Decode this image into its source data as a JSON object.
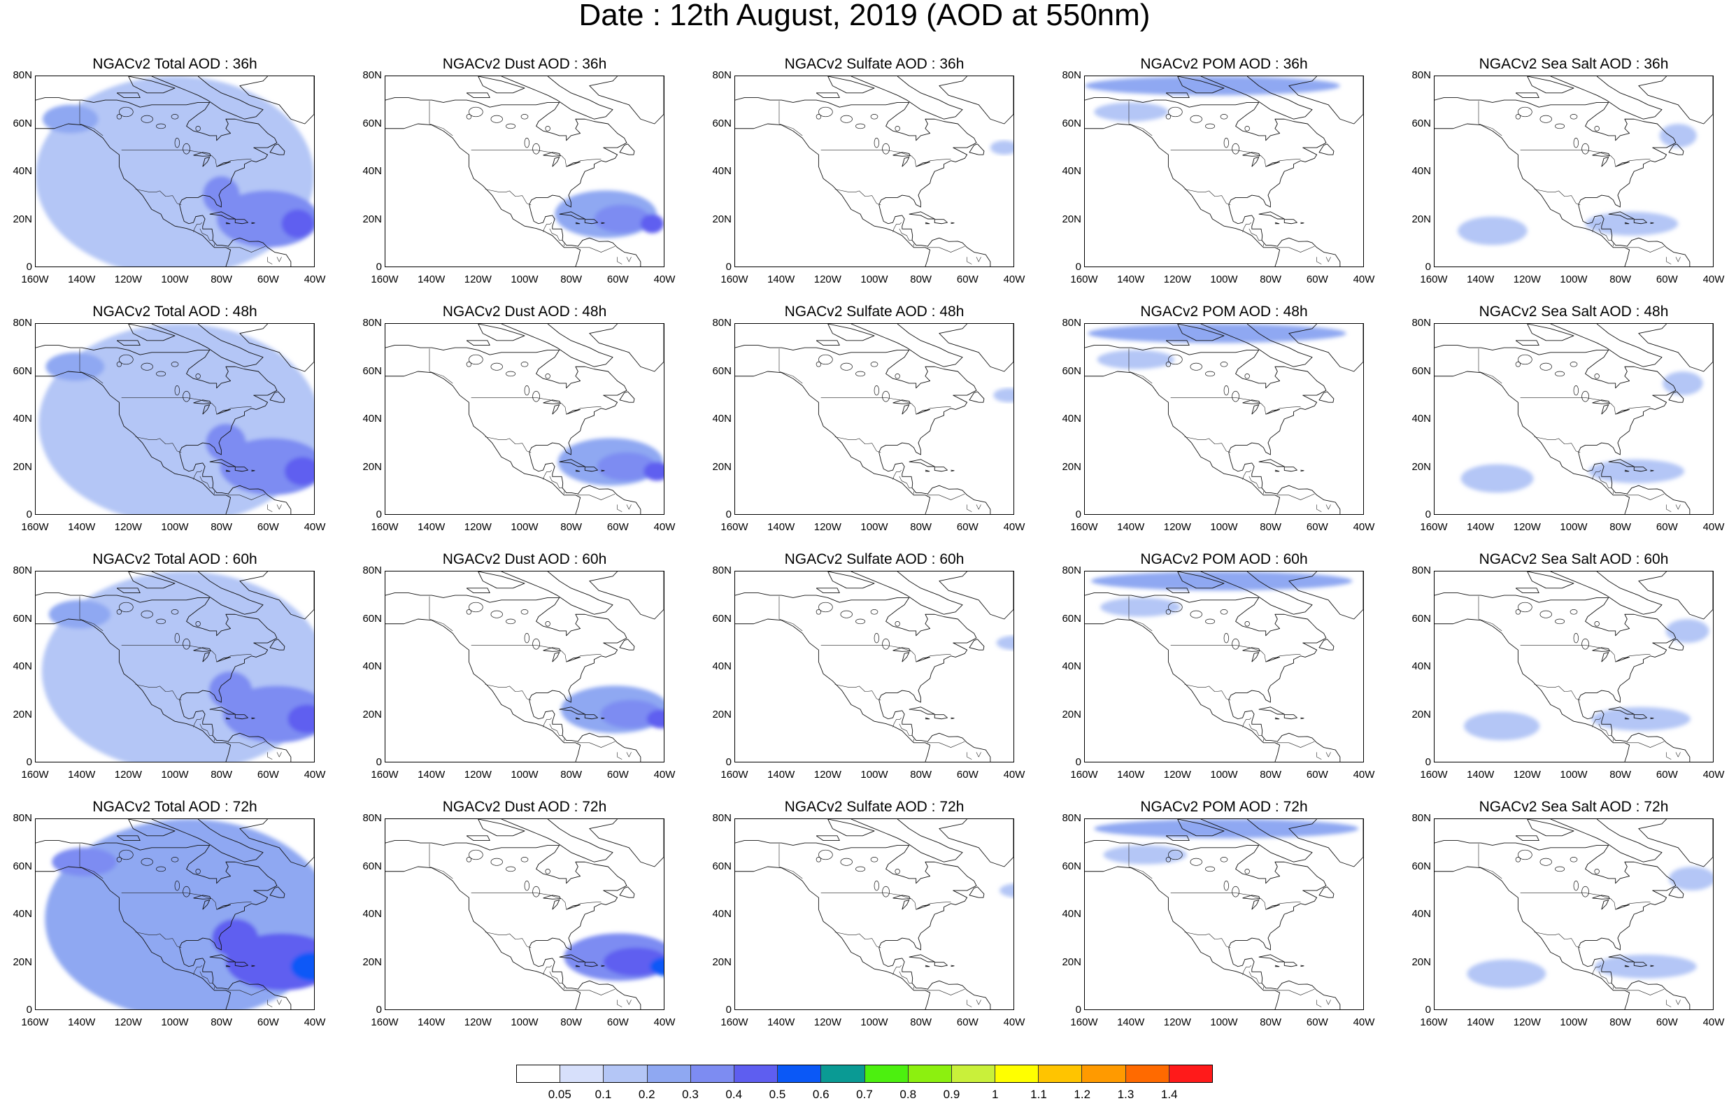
{
  "title": "Date : 12th August, 2019 (AOD at 550nm)",
  "y_ticks": [
    "80N",
    "60N",
    "40N",
    "20N",
    "0"
  ],
  "x_ticks": [
    "160W",
    "140W",
    "120W",
    "100W",
    "80W",
    "60W",
    "40W"
  ],
  "panels": [
    {
      "title": "NGACv2 Total AOD : 36h",
      "species": "total",
      "lead": "36h"
    },
    {
      "title": "NGACv2 Dust AOD : 36h",
      "species": "dust",
      "lead": "36h"
    },
    {
      "title": "NGACv2 Sulfate AOD : 36h",
      "species": "sulfate",
      "lead": "36h"
    },
    {
      "title": "NGACv2 POM AOD : 36h",
      "species": "pom",
      "lead": "36h"
    },
    {
      "title": "NGACv2 Sea Salt AOD : 36h",
      "species": "seasalt",
      "lead": "36h"
    },
    {
      "title": "NGACv2 Total AOD : 48h",
      "species": "total",
      "lead": "48h"
    },
    {
      "title": "NGACv2 Dust AOD : 48h",
      "species": "dust",
      "lead": "48h"
    },
    {
      "title": "NGACv2 Sulfate AOD : 48h",
      "species": "sulfate",
      "lead": "48h"
    },
    {
      "title": "NGACv2 POM AOD : 48h",
      "species": "pom",
      "lead": "48h"
    },
    {
      "title": "NGACv2 Sea Salt AOD : 48h",
      "species": "seasalt",
      "lead": "48h"
    },
    {
      "title": "NGACv2 Total AOD : 60h",
      "species": "total",
      "lead": "60h"
    },
    {
      "title": "NGACv2 Dust AOD : 60h",
      "species": "dust",
      "lead": "60h"
    },
    {
      "title": "NGACv2 Sulfate AOD : 60h",
      "species": "sulfate",
      "lead": "60h"
    },
    {
      "title": "NGACv2 POM AOD : 60h",
      "species": "pom",
      "lead": "60h"
    },
    {
      "title": "NGACv2 Sea Salt AOD : 60h",
      "species": "seasalt",
      "lead": "60h"
    },
    {
      "title": "NGACv2 Total AOD : 72h",
      "species": "total",
      "lead": "72h"
    },
    {
      "title": "NGACv2 Dust AOD : 72h",
      "species": "dust",
      "lead": "72h"
    },
    {
      "title": "NGACv2 Sulfate AOD : 72h",
      "species": "sulfate",
      "lead": "72h"
    },
    {
      "title": "NGACv2 POM AOD : 72h",
      "species": "pom",
      "lead": "72h"
    },
    {
      "title": "NGACv2 Sea Salt  AOD : 72h",
      "species": "seasalt",
      "lead": "72h"
    }
  ],
  "colorbar": {
    "labels": [
      "0.05",
      "0.1",
      "0.2",
      "0.3",
      "0.4",
      "0.5",
      "0.6",
      "0.7",
      "0.8",
      "0.9",
      "1",
      "1.1",
      "1.2",
      "1.3",
      "1.4"
    ],
    "colors": [
      "#ffffff",
      "#d7e0fb",
      "#b4c6f6",
      "#8fa8f2",
      "#7d8cf2",
      "#5e5ef0",
      "#0a58f7",
      "#0a9a94",
      "#4cf00f",
      "#8cf00f",
      "#c9f03a",
      "#ffff00",
      "#ffc400",
      "#ff9a00",
      "#ff6a00",
      "#ff1a1a"
    ]
  },
  "map_extent": {
    "lon": [
      -160,
      -40
    ],
    "lat": [
      0,
      80
    ]
  },
  "aod_features": {
    "total": [
      {
        "lon": -100,
        "lat": 38,
        "rx": 60,
        "ry": 42,
        "aod": 0.1
      },
      {
        "lon": -60,
        "lat": 20,
        "rx": 22,
        "ry": 12,
        "aod": 0.3
      },
      {
        "lon": -80,
        "lat": 30,
        "rx": 8,
        "ry": 8,
        "aod": 0.3
      },
      {
        "lon": -47,
        "lat": 18,
        "rx": 7,
        "ry": 6,
        "aod": 0.4
      },
      {
        "lon": -145,
        "lat": 62,
        "rx": 12,
        "ry": 6,
        "aod": 0.2
      }
    ],
    "dust": [
      {
        "lon": -65,
        "lat": 22,
        "rx": 22,
        "ry": 10,
        "aod": 0.2
      },
      {
        "lon": -58,
        "lat": 20,
        "rx": 12,
        "ry": 6,
        "aod": 0.3
      },
      {
        "lon": -45,
        "lat": 18,
        "rx": 5,
        "ry": 4,
        "aod": 0.4
      }
    ],
    "sulfate": [
      {
        "lon": -44,
        "lat": 50,
        "rx": 6,
        "ry": 3,
        "aod": 0.1
      }
    ],
    "pom": [
      {
        "lon": -105,
        "lat": 76,
        "rx": 55,
        "ry": 4,
        "aod": 0.2
      },
      {
        "lon": -140,
        "lat": 65,
        "rx": 16,
        "ry": 4,
        "aod": 0.1
      }
    ],
    "seasalt": [
      {
        "lon": -75,
        "lat": 18,
        "rx": 20,
        "ry": 5,
        "aod": 0.1
      },
      {
        "lon": -135,
        "lat": 15,
        "rx": 15,
        "ry": 6,
        "aod": 0.1
      },
      {
        "lon": -55,
        "lat": 55,
        "rx": 8,
        "ry": 5,
        "aod": 0.1
      }
    ]
  }
}
